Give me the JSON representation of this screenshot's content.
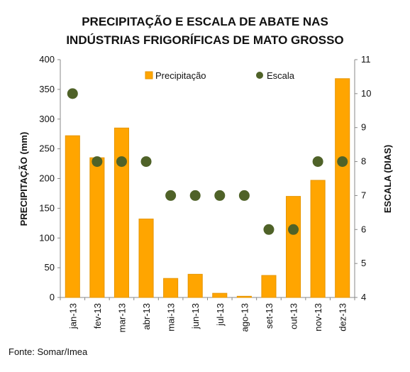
{
  "chart_data": {
    "type": "bar",
    "title_lines": [
      "PRECIPITAÇÃO E ESCALA DE ABATE NAS",
      "INDÚSTRIAS FRIGORÍFICAS DE MATO GROSSO"
    ],
    "categories": [
      "jan-13",
      "fev-13",
      "mar-13",
      "abr-13",
      "mai-13",
      "jun-13",
      "jul-13",
      "ago-13",
      "set-13",
      "out-13",
      "nov-13",
      "dez-13"
    ],
    "series": [
      {
        "name": "Precipitação",
        "kind": "bar",
        "axis": "left",
        "color": "#FFA500",
        "values": [
          272,
          235,
          285,
          132,
          32,
          39,
          7,
          2,
          37,
          170,
          197,
          368
        ]
      },
      {
        "name": "Escala",
        "kind": "scatter",
        "axis": "right",
        "color": "#4F6228",
        "values": [
          10,
          8,
          8,
          8,
          7,
          7,
          7,
          7,
          6,
          6,
          8,
          8
        ]
      }
    ],
    "ylabel": "PRECIPITAÇÃO (mm)",
    "y2label": "ESCALA (DIAS)",
    "ylim": [
      0,
      400
    ],
    "y2lim": [
      4,
      11
    ],
    "yticks": [
      "0",
      "50",
      "100",
      "150",
      "200",
      "250",
      "300",
      "350",
      "400"
    ],
    "y2ticks": [
      "4",
      "5",
      "6",
      "7",
      "8",
      "9",
      "10",
      "11"
    ],
    "legend_position": "top",
    "grid": false
  },
  "source": "Fonte: Somar/Imea"
}
